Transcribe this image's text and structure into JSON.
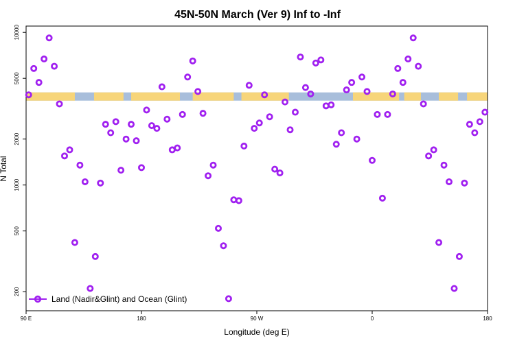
{
  "chart_data": {
    "type": "scatter",
    "title": "45N-50N March (Ver 9)   Inf to -Inf",
    "xlabel": "Longitude (deg E)",
    "ylabel": "N Total",
    "y_scale": "log",
    "xlim": [
      90,
      450
    ],
    "ylim": [
      150,
      11000
    ],
    "x_ticks": [
      {
        "value": 90,
        "label": "90 E"
      },
      {
        "value": 180,
        "label": "180"
      },
      {
        "value": 270,
        "label": "90 W"
      },
      {
        "value": 360,
        "label": "0"
      },
      {
        "value": 450,
        "label": "180"
      }
    ],
    "y_ticks": [
      {
        "value": 200,
        "label": "200"
      },
      {
        "value": 500,
        "label": "500"
      },
      {
        "value": 1000,
        "label": "1000"
      },
      {
        "value": 2000,
        "label": "2000"
      },
      {
        "value": 5000,
        "label": "5000"
      },
      {
        "value": 10000,
        "label": "10000"
      }
    ],
    "grid": false,
    "legend_position": "bottom-left",
    "land_ocean_strip": {
      "y_value": 3800,
      "land_color": "#f7d57a",
      "ocean_color": "#a8bedb",
      "land_ranges": [
        [
          90,
          128
        ],
        [
          143,
          166
        ],
        [
          172,
          210
        ],
        [
          220,
          252
        ],
        [
          258,
          295
        ],
        [
          345,
          381
        ],
        [
          385,
          398
        ],
        [
          412,
          427
        ],
        [
          434,
          451
        ]
      ]
    },
    "series": [
      {
        "name": "Land (Nadir&Glint) and Ocean (Glint)",
        "color": "#a020f0",
        "marker": "open-circle",
        "x": [
          92,
          96,
          100,
          104,
          108,
          112,
          116,
          120,
          124,
          128,
          132,
          136,
          140,
          144,
          148,
          152,
          156,
          160,
          164,
          168,
          172,
          176,
          180,
          184,
          188,
          192,
          196,
          200,
          204,
          208,
          212,
          216,
          220,
          224,
          228,
          232,
          236,
          240,
          244,
          248,
          252,
          256,
          260,
          264,
          268,
          272,
          276,
          280,
          284,
          288,
          292,
          296,
          300,
          304,
          308,
          312,
          316,
          320,
          324,
          328,
          332,
          336,
          340,
          344,
          348,
          352,
          356,
          360,
          364,
          368,
          372,
          376,
          380,
          384,
          388,
          392,
          396,
          400,
          404,
          408,
          412,
          416,
          420,
          424,
          428,
          432,
          436,
          440,
          444,
          448
        ],
        "y": [
          3900,
          5800,
          4700,
          6700,
          9200,
          6000,
          3400,
          1550,
          1700,
          420,
          1350,
          1050,
          210,
          340,
          1030,
          2500,
          2200,
          2600,
          1250,
          2000,
          2500,
          1950,
          1300,
          3100,
          2450,
          2350,
          4400,
          2700,
          1700,
          1750,
          2900,
          5100,
          6500,
          4100,
          2950,
          1150,
          1350,
          520,
          400,
          180,
          800,
          790,
          1800,
          4500,
          2350,
          2550,
          3900,
          2800,
          1270,
          1200,
          3500,
          2300,
          3000,
          6900,
          4350,
          3950,
          6300,
          6600,
          3300,
          3350,
          1850,
          2200,
          4200,
          4700,
          2000,
          5100,
          4100,
          1450,
          2900,
          820,
          2900,
          3950,
          5800,
          4700,
          6700,
          9200,
          6000,
          3400,
          1550,
          1700,
          420,
          1350,
          1050,
          210,
          340,
          1030,
          2500,
          2200,
          2600,
          3000
        ]
      }
    ]
  }
}
